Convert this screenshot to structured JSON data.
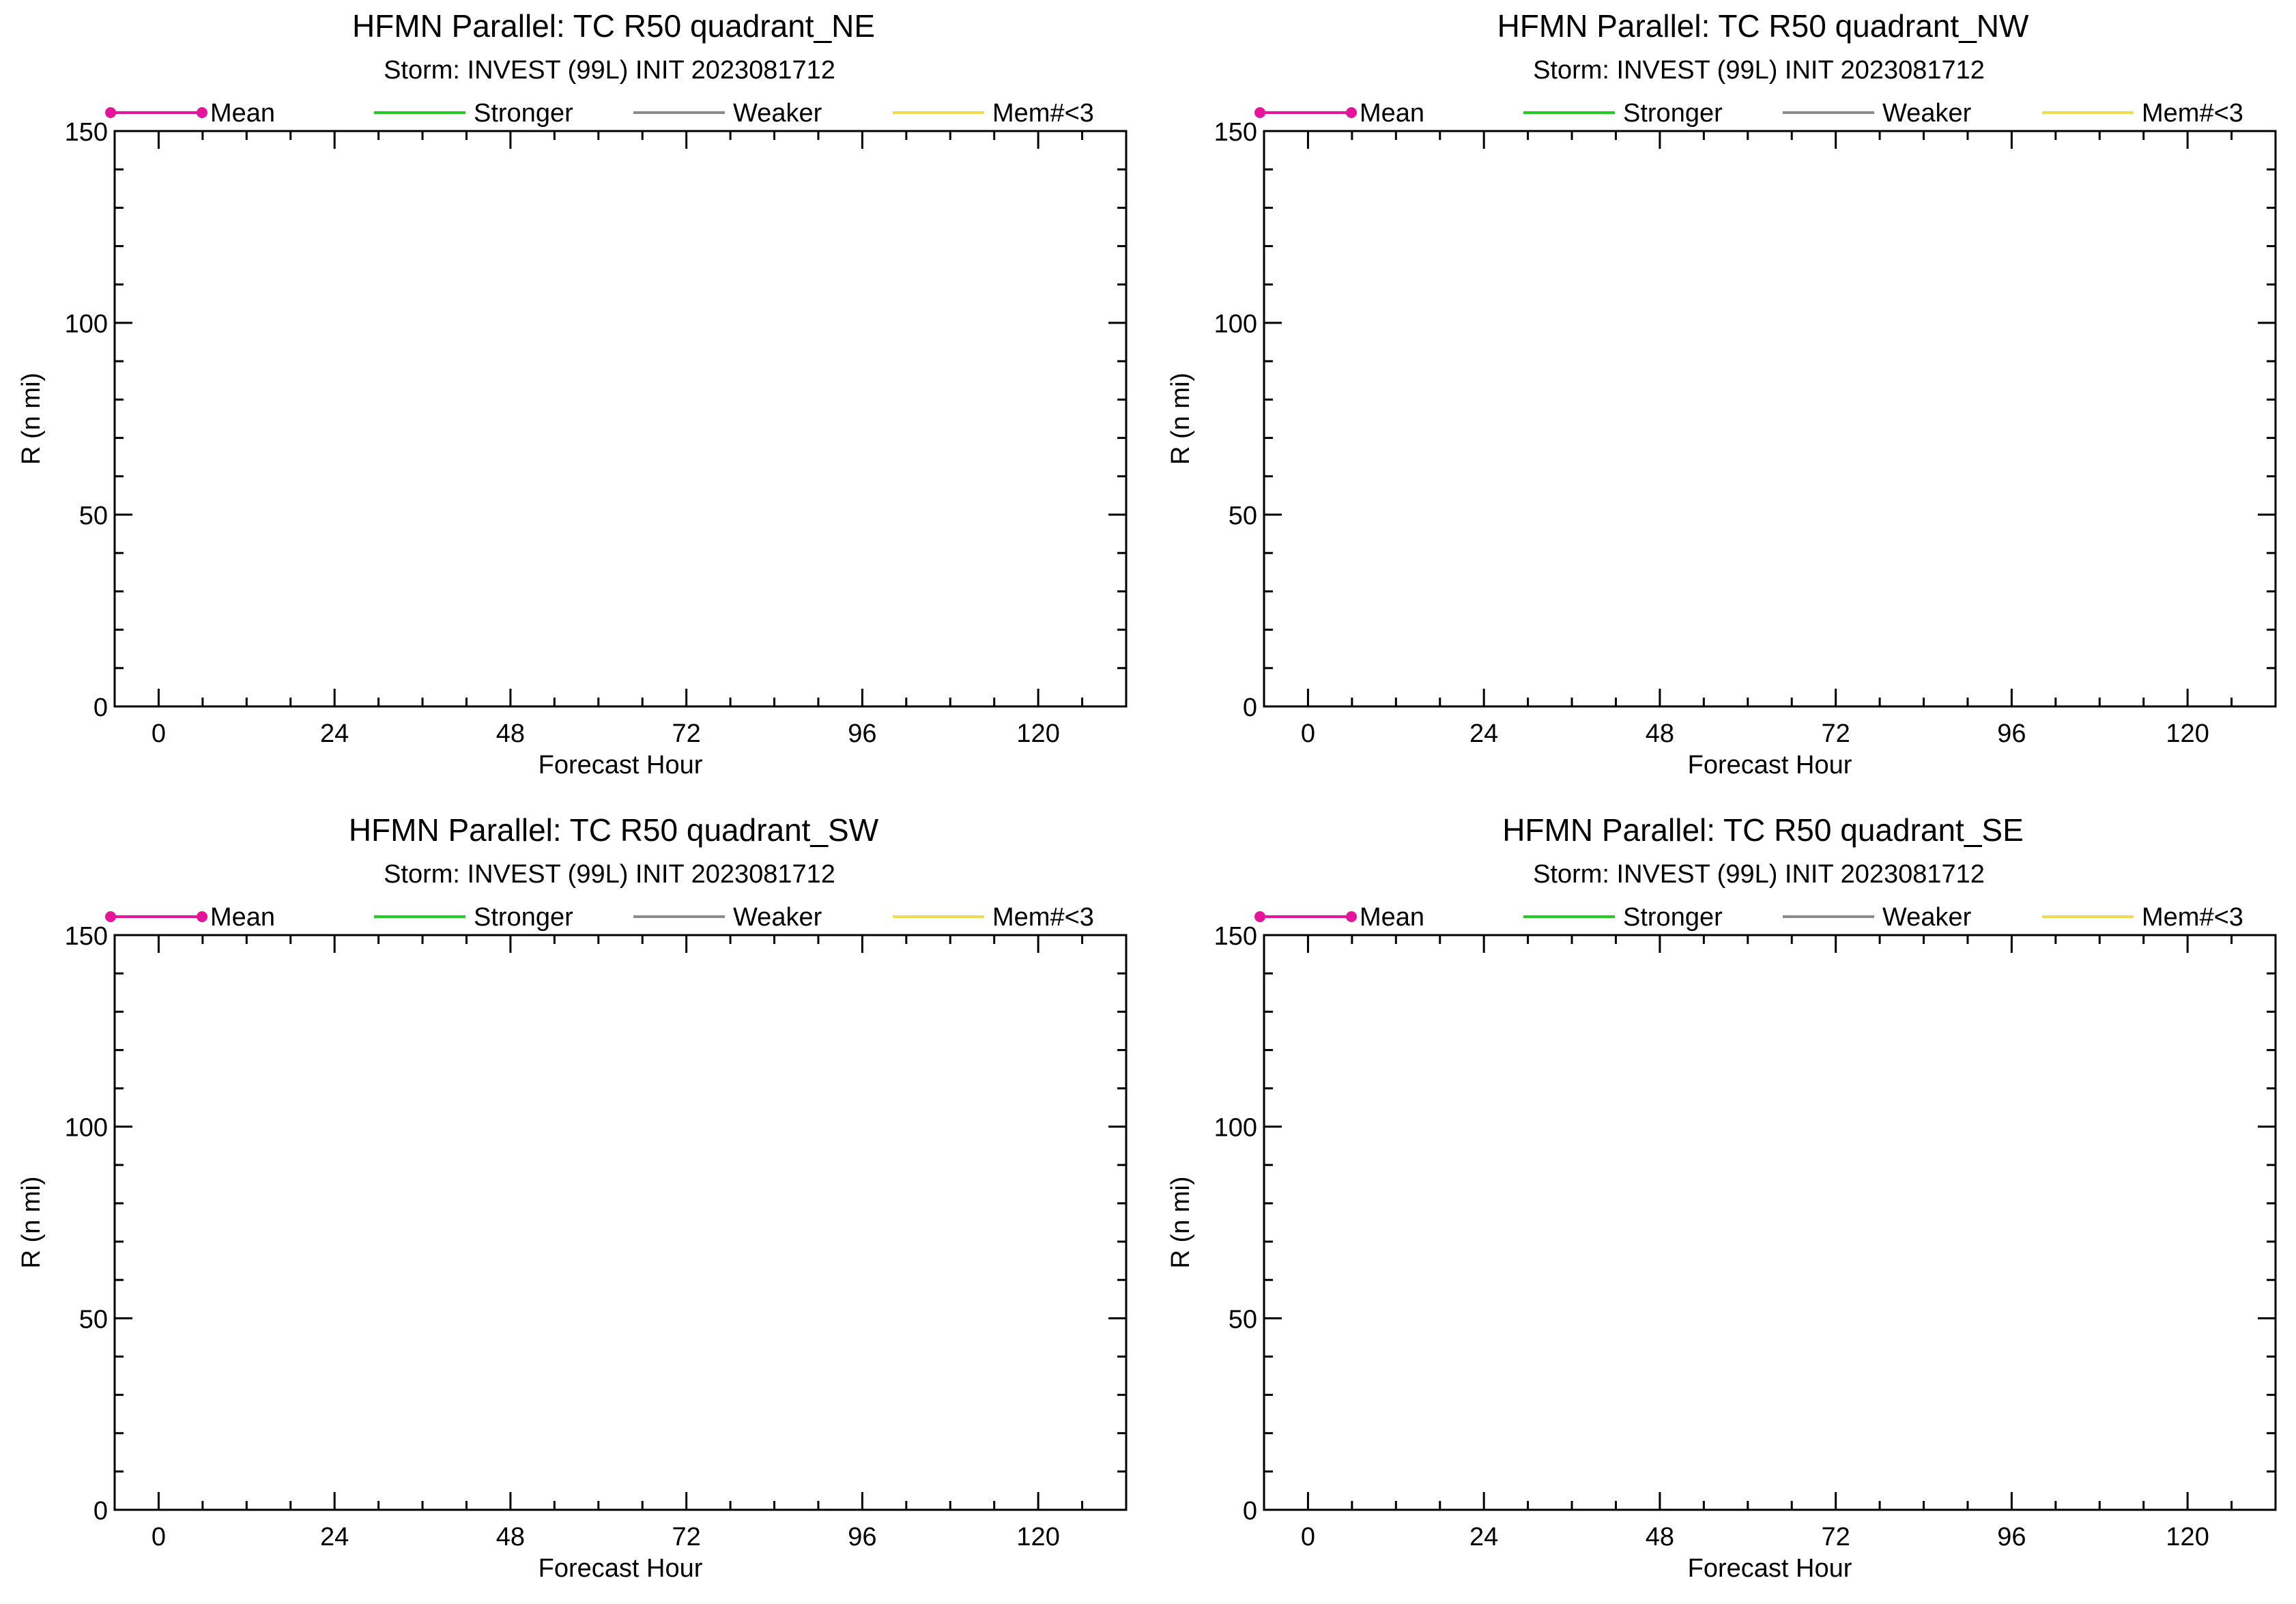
{
  "chart_data": [
    {
      "type": "line",
      "title": "HFMN Parallel: TC  R50 quadrant_NE",
      "subtitle": "Storm: INVEST (99L) INIT 2023081712",
      "xlabel": "Forecast Hour",
      "ylabel": "R (n mi)",
      "xlim": [
        -6,
        132
      ],
      "ylim": [
        0,
        150
      ],
      "xticks": [
        0,
        24,
        48,
        72,
        96,
        120
      ],
      "yticks": [
        0,
        50,
        100,
        150
      ],
      "grid": false,
      "legend_position": "top",
      "series": [
        {
          "name": "Mean",
          "color": "#e6149b",
          "marker": "circle",
          "values": []
        },
        {
          "name": "Stronger",
          "color": "#22cc22",
          "values": []
        },
        {
          "name": "Weaker",
          "color": "#8c8c8c",
          "values": []
        },
        {
          "name": "Mem#<3",
          "color": "#f0dc50",
          "values": []
        }
      ]
    },
    {
      "type": "line",
      "title": "HFMN Parallel: TC  R50 quadrant_NW",
      "subtitle": "Storm: INVEST (99L) INIT 2023081712",
      "xlabel": "Forecast Hour",
      "ylabel": "R (n mi)",
      "xlim": [
        -6,
        132
      ],
      "ylim": [
        0,
        150
      ],
      "xticks": [
        0,
        24,
        48,
        72,
        96,
        120
      ],
      "yticks": [
        0,
        50,
        100,
        150
      ],
      "grid": false,
      "legend_position": "top",
      "series": [
        {
          "name": "Mean",
          "color": "#e6149b",
          "marker": "circle",
          "values": []
        },
        {
          "name": "Stronger",
          "color": "#22cc22",
          "values": []
        },
        {
          "name": "Weaker",
          "color": "#8c8c8c",
          "values": []
        },
        {
          "name": "Mem#<3",
          "color": "#f0dc50",
          "values": []
        }
      ]
    },
    {
      "type": "line",
      "title": "HFMN Parallel: TC  R50 quadrant_SW",
      "subtitle": "Storm: INVEST (99L) INIT 2023081712",
      "xlabel": "Forecast Hour",
      "ylabel": "R (n mi)",
      "xlim": [
        -6,
        132
      ],
      "ylim": [
        0,
        150
      ],
      "xticks": [
        0,
        24,
        48,
        72,
        96,
        120
      ],
      "yticks": [
        0,
        50,
        100,
        150
      ],
      "grid": false,
      "legend_position": "top",
      "series": [
        {
          "name": "Mean",
          "color": "#e6149b",
          "marker": "circle",
          "values": []
        },
        {
          "name": "Stronger",
          "color": "#22cc22",
          "values": []
        },
        {
          "name": "Weaker",
          "color": "#8c8c8c",
          "values": []
        },
        {
          "name": "Mem#<3",
          "color": "#f0dc50",
          "values": []
        }
      ]
    },
    {
      "type": "line",
      "title": "HFMN Parallel: TC  R50 quadrant_SE",
      "subtitle": "Storm: INVEST (99L) INIT 2023081712",
      "xlabel": "Forecast Hour",
      "ylabel": "R (n mi)",
      "xlim": [
        -6,
        132
      ],
      "ylim": [
        0,
        150
      ],
      "xticks": [
        0,
        24,
        48,
        72,
        96,
        120
      ],
      "yticks": [
        0,
        50,
        100,
        150
      ],
      "grid": false,
      "legend_position": "top",
      "series": [
        {
          "name": "Mean",
          "color": "#e6149b",
          "marker": "circle",
          "values": []
        },
        {
          "name": "Stronger",
          "color": "#22cc22",
          "values": []
        },
        {
          "name": "Weaker",
          "color": "#8c8c8c",
          "values": []
        },
        {
          "name": "Mem#<3",
          "color": "#f0dc50",
          "values": []
        }
      ]
    }
  ]
}
